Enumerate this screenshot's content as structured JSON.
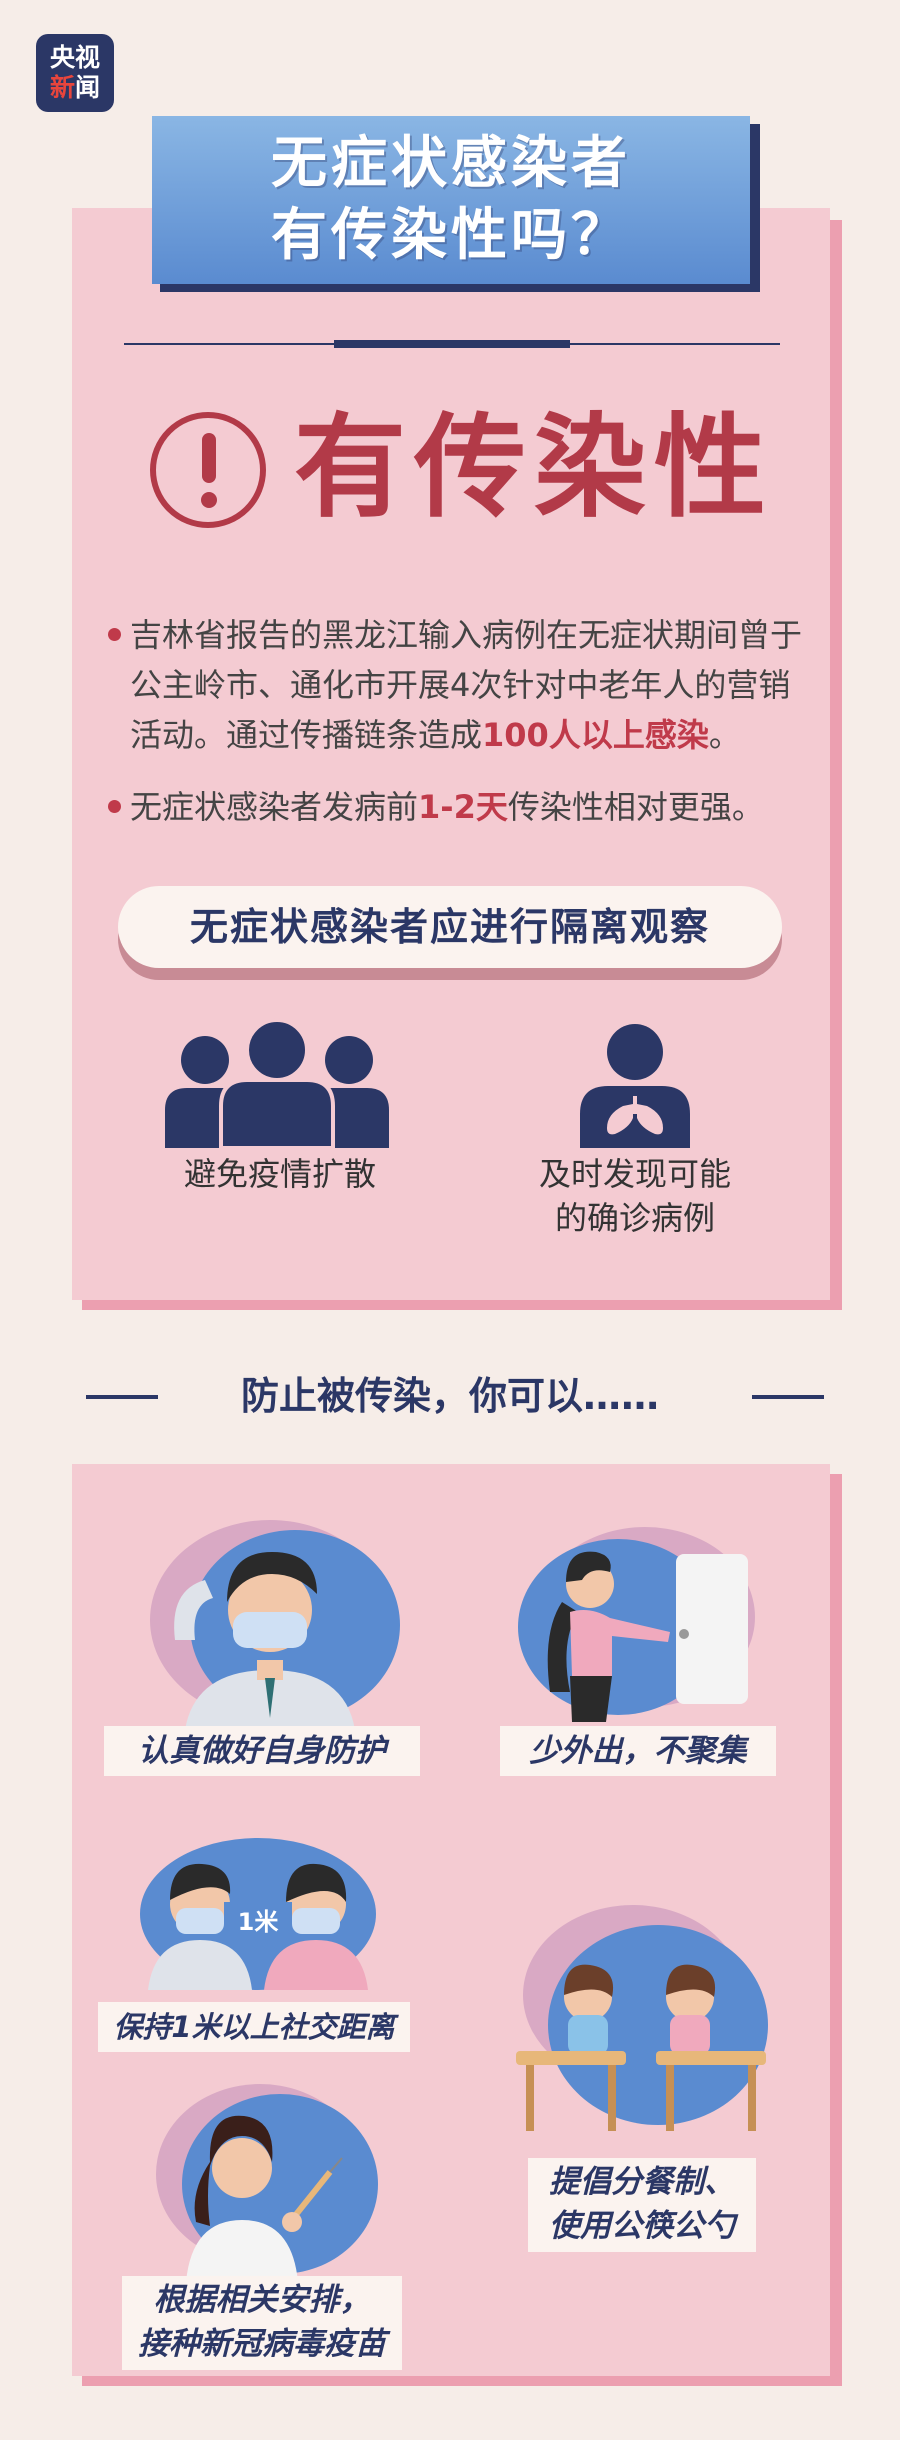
{
  "logo": {
    "line1": "央视",
    "line2_a": "新",
    "line2_b": "闻"
  },
  "title": {
    "line1": "无症状感染者",
    "line2": "有传染性吗？"
  },
  "alert": {
    "headline": "有传染性"
  },
  "bullets": {
    "b1_line1": "吉林省报告的黑龙江输入病例在无症状期间曾于",
    "b1_line2": "公主岭市、通化市开展4次针对中老年人的营销",
    "b1_line3a": "活动。通过传播链条造成",
    "b1_line3_hl": "100人以上感染",
    "b1_line3b": "。",
    "b2a": "无症状感染者发病前",
    "b2_hl": "1-2天",
    "b2b": "传染性相对更强。"
  },
  "isolation": {
    "pill": "无症状感染者应进行隔离观察",
    "item1": "避免疫情扩散",
    "item2_line1": "及时发现可能",
    "item2_line2": "的确诊病例"
  },
  "prevent": {
    "heading": "防止被传染，你可以……",
    "tip1": "认真做好自身防护",
    "tip2": "少外出，不聚集",
    "tip3": "保持1米以上社交距离",
    "distance_tag": "1米",
    "tip4_line1": "提倡分餐制、",
    "tip4_line2": "使用公筷公勺",
    "tip5_line1": "根据相关安排，",
    "tip5_line2": "接种新冠病毒疫苗"
  },
  "colors": {
    "navy": "#2b3766",
    "red": "#b23a48",
    "pink_panel": "#f4cbd2",
    "blue": "#5a8bd0"
  }
}
